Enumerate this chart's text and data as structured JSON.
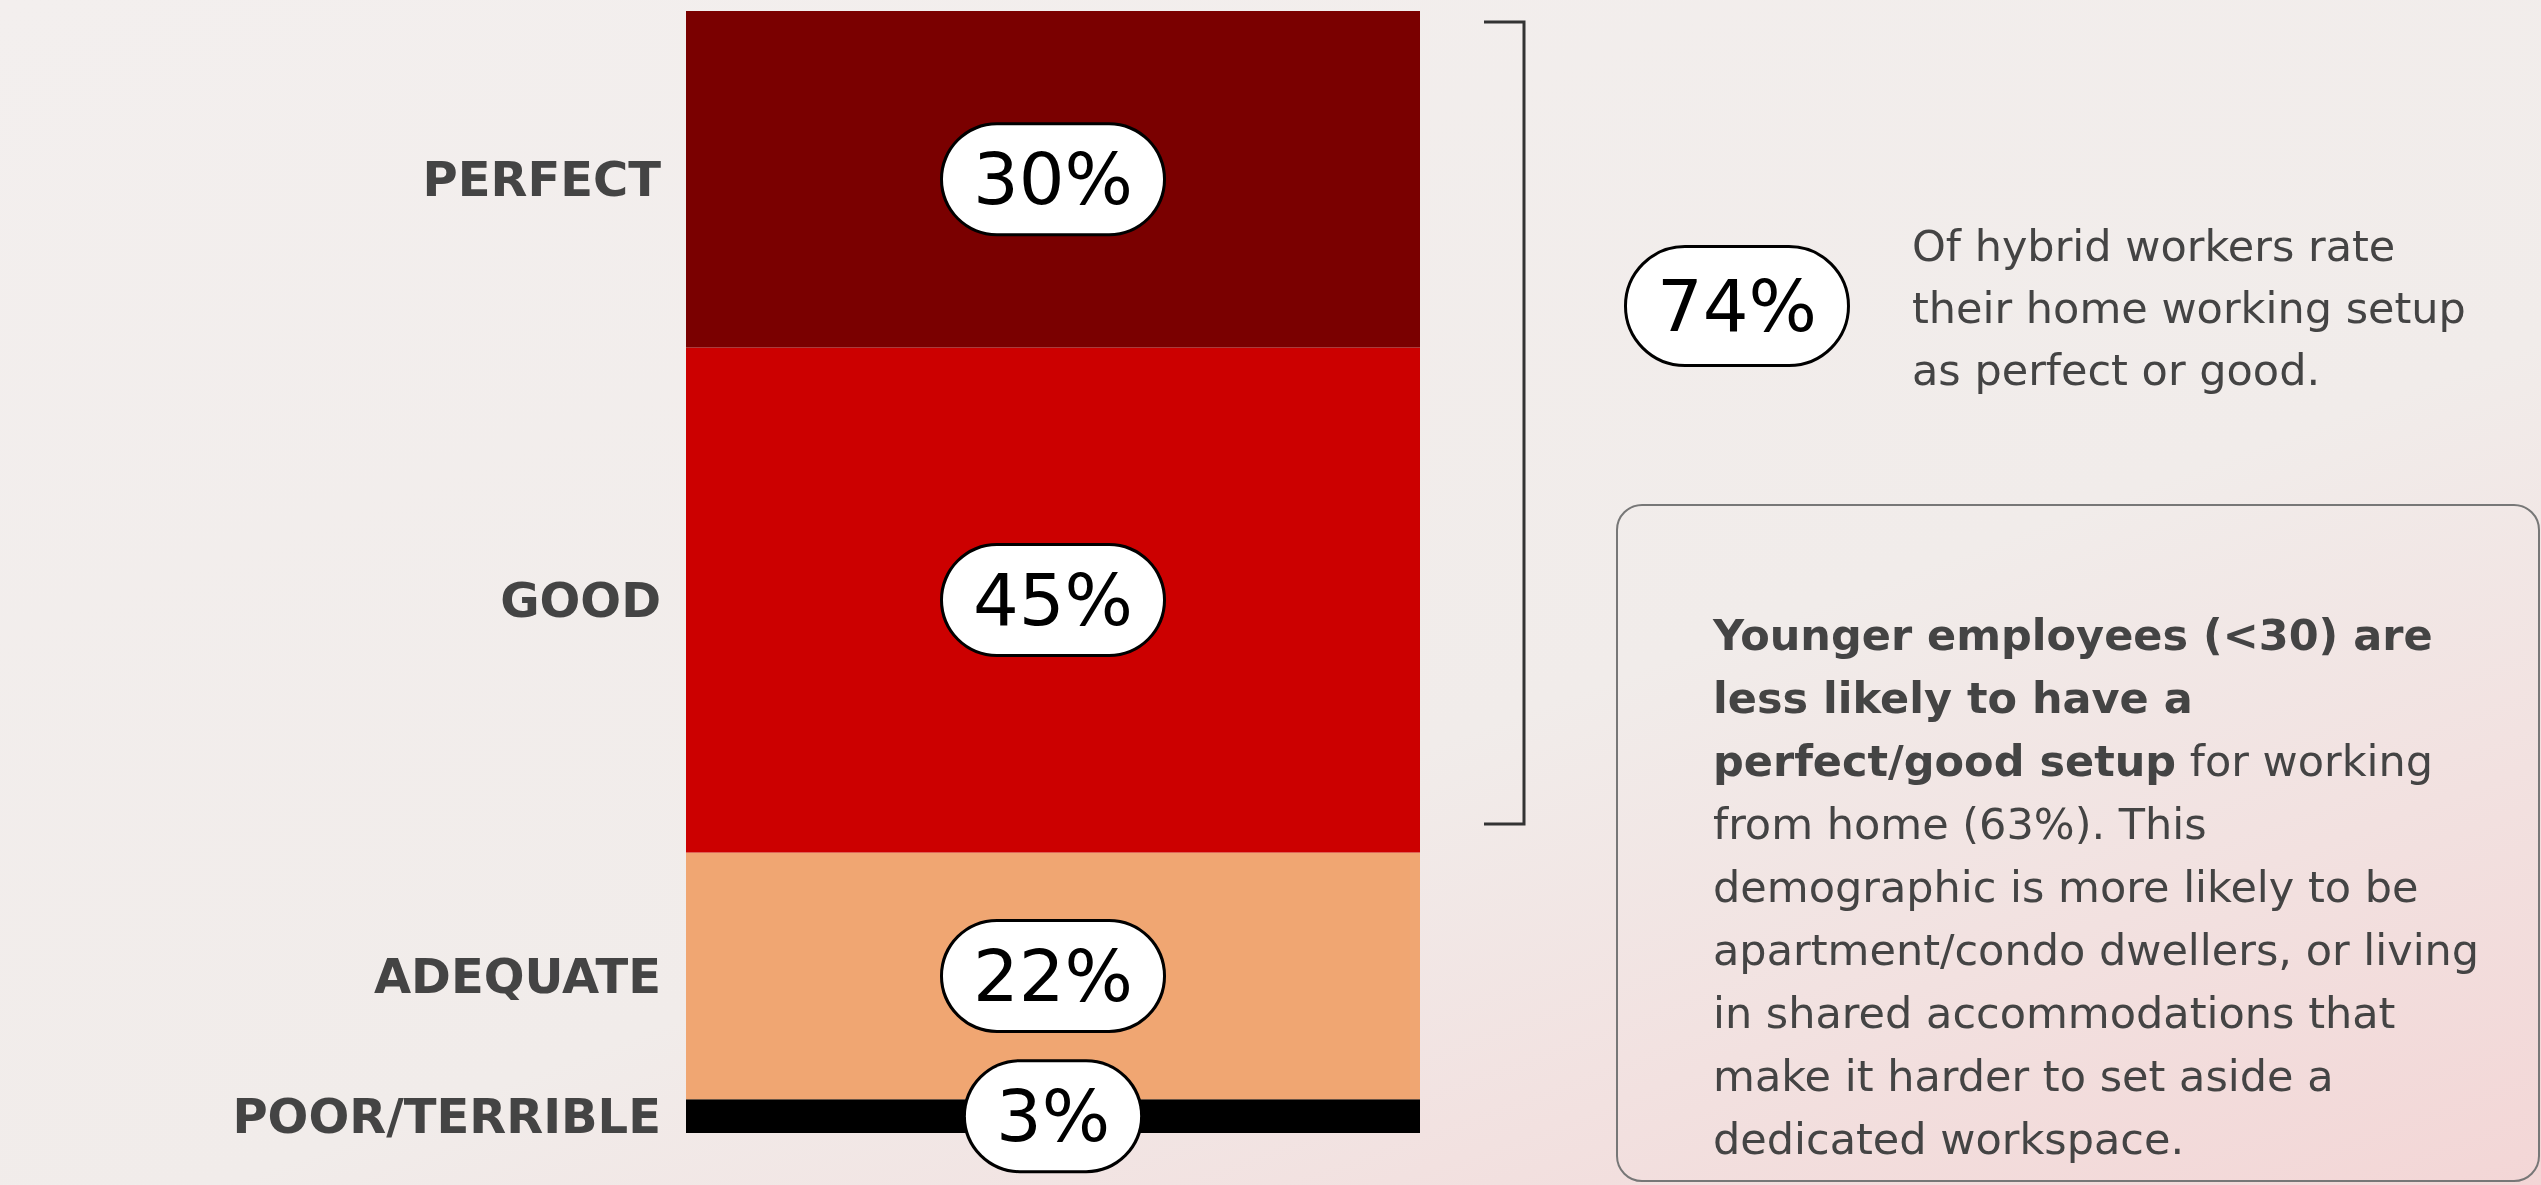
{
  "chart_data": {
    "type": "bar",
    "stacked": true,
    "categories": [
      null
    ],
    "legend": false,
    "series": [
      {
        "name": "POOR/TERRIBLE",
        "color": "#000000",
        "values": [
          3
        ],
        "value_labels": [
          "3%"
        ]
      },
      {
        "name": "ADEQUATE",
        "color": "#f0a672",
        "values": [
          22
        ],
        "value_labels": [
          "22%"
        ]
      },
      {
        "name": "GOOD",
        "color": "#cc0000",
        "values": [
          45
        ],
        "value_labels": [
          "45%"
        ]
      },
      {
        "name": "PERFECT",
        "color": "#7a0000",
        "values": [
          30
        ],
        "value_labels": [
          "30%"
        ]
      }
    ],
    "annotations": [
      "74%",
      "Of hybrid workers rate their home working setup as perfect or good.",
      "Younger employees (<30) are less likely to have a perfect/good setup",
      "for working from home (63%). This demographic is more likely to be apartment/condo dwellers, or living in shared accommodations that make it harder to set aside a dedicated workspace."
    ]
  }
}
